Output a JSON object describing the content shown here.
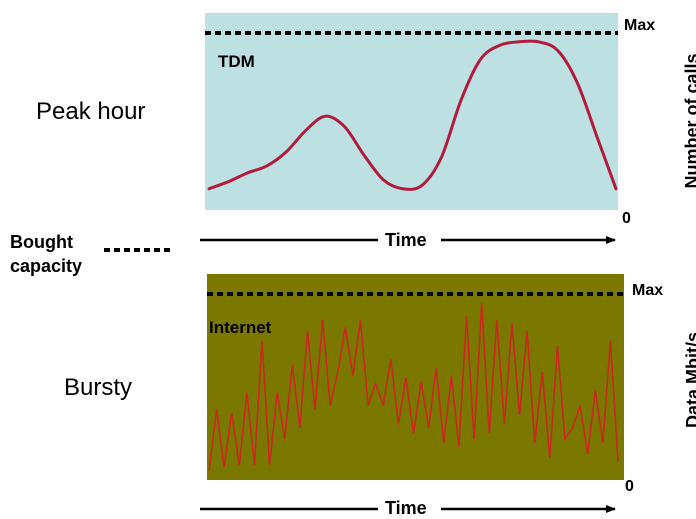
{
  "left_labels": {
    "peak_hour": "Peak hour",
    "bought_capacity_line1": "Bought",
    "bought_capacity_line2": "capacity",
    "bursty": "Bursty"
  },
  "top_panel": {
    "label": "TDM",
    "max_label": "Max",
    "zero_label": "0",
    "axis_label": "Time",
    "y_axis_label": "Number of calls",
    "background_color": "#bde0e3",
    "line_color": "#b01c3c",
    "curve_values": [
      0.12,
      0.16,
      0.21,
      0.25,
      0.33,
      0.45,
      0.53,
      0.47,
      0.31,
      0.17,
      0.12,
      0.14,
      0.3,
      0.62,
      0.85,
      0.93,
      0.95,
      0.95,
      0.9,
      0.72,
      0.42,
      0.12
    ]
  },
  "bottom_panel": {
    "label": "Internet",
    "max_label": "Max",
    "zero_label": "0",
    "axis_label": "Time",
    "y_axis_label": "Data Mbit/s",
    "background_color": "#7b7800",
    "line_color": "#c8281e",
    "series_values": [
      0.05,
      0.38,
      0.07,
      0.36,
      0.08,
      0.47,
      0.08,
      0.75,
      0.08,
      0.47,
      0.22,
      0.62,
      0.28,
      0.8,
      0.38,
      0.86,
      0.4,
      0.58,
      0.82,
      0.56,
      0.86,
      0.4,
      0.52,
      0.4,
      0.65,
      0.3,
      0.55,
      0.25,
      0.53,
      0.28,
      0.6,
      0.2,
      0.56,
      0.18,
      0.88,
      0.22,
      0.95,
      0.25,
      0.86,
      0.3,
      0.84,
      0.35,
      0.8,
      0.2,
      0.58,
      0.12,
      0.72,
      0.22,
      0.28,
      0.4,
      0.14,
      0.48,
      0.2,
      0.75,
      0.1
    ]
  }
}
